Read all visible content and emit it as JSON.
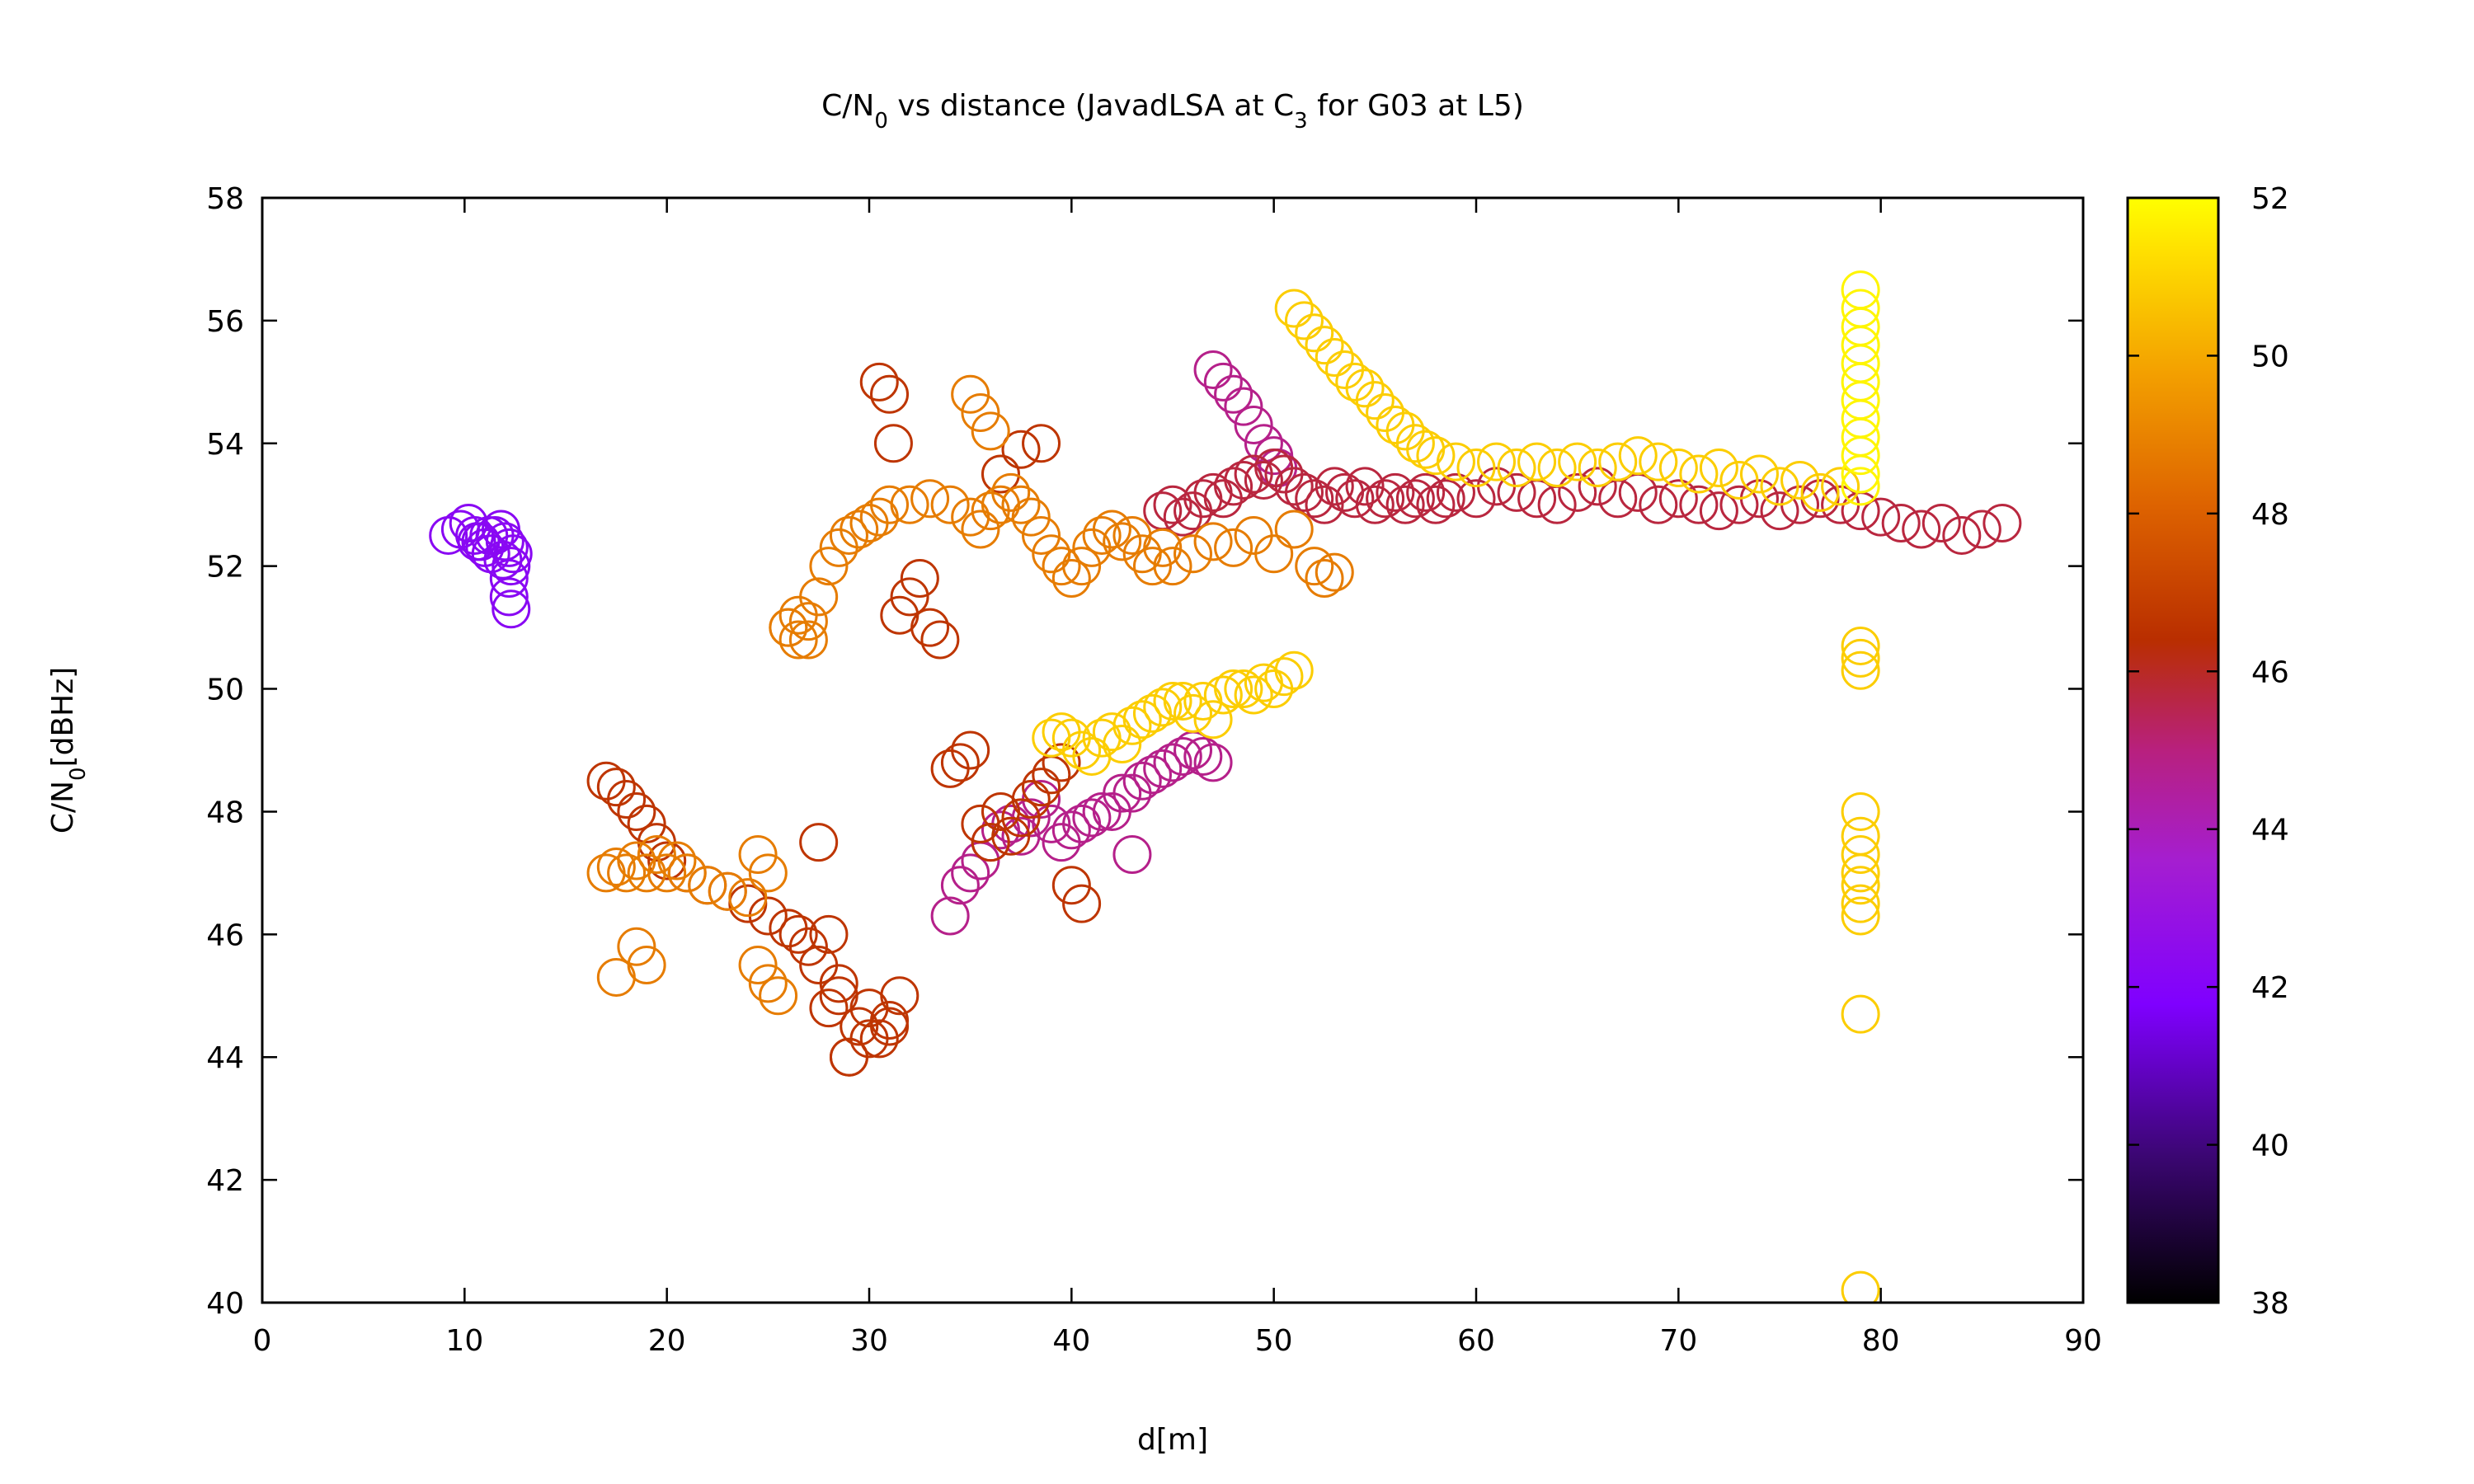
{
  "chart_data": {
    "type": "scatter",
    "title": {
      "prefix": "C/N",
      "sub1": "0",
      "middle": " vs distance (JavadLSA at C",
      "sub2": "3",
      "suffix": " for G03 at L5)"
    },
    "xlabel": "d[m]",
    "ylabel": {
      "prefix": "C/N",
      "sub": "0",
      "suffix": "[dBHz]"
    },
    "xlim": [
      0,
      90
    ],
    "ylim": [
      40,
      58
    ],
    "xticks": [
      "0",
      "10",
      "20",
      "30",
      "40",
      "50",
      "60",
      "70",
      "80",
      "90"
    ],
    "yticks": [
      "40",
      "42",
      "44",
      "46",
      "48",
      "50",
      "52",
      "54",
      "56",
      "58"
    ],
    "colorbar": {
      "range": [
        38,
        52
      ],
      "ticks": [
        "38",
        "40",
        "42",
        "44",
        "46",
        "48",
        "50",
        "52"
      ],
      "palette": [
        "#000000",
        "#3a0670",
        "#7f00ff",
        "#a51ed0",
        "#b8207e",
        "#b92e00",
        "#dd6200",
        "#f39f00",
        "#ffdf00",
        "#ffff00"
      ]
    },
    "marker": "open-circle",
    "series": [
      {
        "color_value": 41.5,
        "x": [
          9.2,
          9.8,
          10.2,
          10.5,
          10.8,
          11.0,
          11.2,
          11.5,
          11.8,
          12.0,
          12.2,
          12.4,
          12.3,
          12.2,
          12.2,
          12.3,
          10.6,
          11.3,
          11.9
        ],
        "y": [
          52.5,
          52.6,
          52.7,
          52.5,
          52.4,
          52.3,
          52.5,
          52.5,
          52.6,
          52.4,
          52.3,
          52.2,
          52.0,
          51.8,
          51.5,
          51.3,
          52.4,
          52.2,
          52.1
        ]
      },
      {
        "color_value": 44.0,
        "x": [
          47.0,
          47.5,
          48.0,
          48.5,
          49.0,
          49.5,
          50.0,
          50.2,
          34.0,
          34.5,
          35.0,
          35.5,
          36.0,
          36.5,
          37.0,
          37.5,
          38.0,
          38.5,
          39.0,
          39.5,
          40.0,
          40.5,
          41.0,
          41.5,
          42.0,
          42.5,
          43.0,
          43.5,
          44.0,
          44.5,
          45.0,
          45.5,
          46.0,
          46.5,
          47.0,
          43.0
        ],
        "y": [
          55.2,
          55.0,
          54.8,
          54.6,
          54.3,
          54.0,
          53.8,
          53.6,
          46.3,
          46.8,
          47.0,
          47.2,
          47.5,
          47.7,
          47.8,
          47.6,
          47.9,
          48.2,
          47.8,
          47.5,
          47.7,
          47.8,
          47.9,
          48.0,
          48.0,
          48.3,
          48.3,
          48.5,
          48.6,
          48.7,
          48.8,
          48.9,
          49.0,
          48.9,
          48.8,
          47.3
        ]
      },
      {
        "color_value": 45.0,
        "x": [
          44.5,
          45.0,
          45.5,
          46.0,
          46.5,
          47.0,
          47.5,
          48.0,
          48.5,
          49.0,
          49.5,
          50.0,
          50.5,
          51.0,
          51.5,
          52.0,
          52.5,
          53.0,
          53.5,
          54.0,
          54.5,
          55.0,
          55.5,
          56.0,
          56.5,
          57.0,
          57.5,
          58.0,
          58.5,
          59.0,
          60.0,
          61.0,
          62.0,
          63.0,
          64.0,
          65.0,
          66.0,
          67.0,
          68.0,
          69.0,
          70.0,
          71.0,
          72.0,
          73.0,
          74.0,
          75.0,
          76.0,
          77.0,
          78.0,
          79.0,
          80.0,
          81.0,
          82.0,
          83.0,
          84.0,
          85.0,
          86.0
        ],
        "y": [
          52.9,
          53.0,
          52.8,
          52.9,
          53.1,
          53.2,
          53.1,
          53.3,
          53.4,
          53.5,
          53.4,
          53.6,
          53.5,
          53.3,
          53.2,
          53.1,
          53.0,
          53.3,
          53.2,
          53.1,
          53.3,
          53.0,
          53.1,
          53.2,
          53.0,
          53.1,
          53.2,
          53.0,
          53.1,
          53.2,
          53.1,
          53.3,
          53.2,
          53.1,
          53.0,
          53.2,
          53.3,
          53.1,
          53.2,
          53.0,
          53.1,
          53.0,
          52.9,
          53.0,
          53.1,
          52.9,
          53.0,
          53.1,
          53.0,
          52.9,
          52.8,
          52.7,
          52.6,
          52.7,
          52.5,
          52.6,
          52.7
        ]
      },
      {
        "color_value": 46.0,
        "x": [
          17.0,
          17.5,
          18.0,
          18.5,
          19.0,
          19.5,
          20.0,
          21.0,
          22.0,
          23.0,
          24.0,
          25.0,
          26.0,
          26.5,
          27.0,
          27.5,
          28.0,
          28.5,
          29.0,
          29.5,
          30.0,
          30.5,
          31.0,
          31.5,
          30.5,
          31.0,
          31.2,
          31.5,
          32.0,
          32.5,
          33.0,
          33.5,
          34.0,
          34.5,
          35.0,
          35.5,
          36.0,
          36.5,
          37.0,
          37.5,
          38.0,
          38.5,
          39.0,
          39.5,
          40.0,
          40.5,
          28.0,
          28.5,
          29.0,
          30.0,
          31.0,
          27.5,
          36.5,
          37.5,
          38.5
        ],
        "y": [
          48.5,
          48.4,
          48.2,
          48.0,
          47.8,
          47.5,
          47.2,
          47.0,
          46.8,
          46.7,
          46.5,
          46.3,
          46.1,
          46.0,
          45.8,
          45.5,
          46.0,
          45.2,
          44.0,
          44.5,
          44.8,
          44.3,
          44.5,
          45.0,
          55.0,
          54.8,
          54.0,
          51.2,
          51.5,
          51.8,
          51.0,
          50.8,
          48.7,
          48.8,
          49.0,
          47.8,
          47.5,
          48.0,
          47.6,
          47.9,
          48.2,
          48.4,
          48.6,
          48.8,
          46.8,
          46.5,
          44.8,
          45.0,
          44.0,
          44.3,
          44.6,
          47.5,
          53.5,
          53.9,
          54.0
        ]
      },
      {
        "color_value": 48.0,
        "x": [
          17.0,
          17.5,
          18.0,
          18.5,
          19.0,
          19.5,
          20.0,
          20.5,
          21.0,
          22.0,
          23.0,
          24.0,
          24.5,
          25.0,
          25.5,
          26.0,
          26.5,
          27.0,
          27.5,
          28.0,
          28.5,
          29.0,
          29.5,
          30.0,
          30.5,
          31.0,
          32.0,
          33.0,
          34.0,
          35.0,
          35.5,
          36.0,
          36.5,
          37.0,
          37.5,
          38.0,
          38.5,
          39.0,
          39.5,
          40.0,
          40.5,
          41.0,
          41.5,
          42.0,
          42.5,
          43.0,
          43.5,
          44.0,
          44.5,
          45.0,
          46.0,
          47.0,
          48.0,
          49.0,
          50.0,
          51.0,
          52.0,
          52.5,
          53.0,
          26.0,
          26.5,
          27.0,
          17.5,
          18.5,
          19.0,
          24.5,
          25.0,
          35.0,
          35.5,
          36.0
        ],
        "y": [
          47.0,
          47.1,
          47.0,
          47.2,
          47.0,
          47.3,
          47.0,
          47.2,
          47.0,
          46.8,
          46.7,
          46.6,
          45.5,
          45.2,
          45.0,
          51.0,
          51.2,
          50.8,
          51.5,
          52.0,
          52.3,
          52.5,
          52.6,
          52.7,
          52.8,
          53.0,
          53.0,
          53.1,
          53.0,
          52.8,
          52.6,
          52.9,
          53.0,
          53.2,
          53.0,
          52.8,
          52.5,
          52.2,
          52.0,
          51.8,
          52.0,
          52.3,
          52.5,
          52.6,
          52.4,
          52.5,
          52.2,
          52.0,
          52.3,
          52.0,
          52.2,
          52.4,
          52.3,
          52.5,
          52.2,
          52.6,
          52.0,
          51.8,
          51.9,
          51.0,
          50.8,
          51.1,
          45.3,
          45.8,
          45.5,
          47.3,
          47.0,
          54.8,
          54.5,
          54.2
        ]
      },
      {
        "color_value": 50.0,
        "x": [
          51.0,
          51.5,
          52.0,
          52.5,
          53.0,
          53.5,
          54.0,
          54.5,
          55.0,
          55.5,
          56.0,
          56.5,
          57.0,
          57.5,
          58.0,
          59.0,
          60.0,
          61.0,
          62.0,
          63.0,
          64.0,
          65.0,
          66.0,
          67.0,
          68.0,
          69.0,
          70.0,
          71.0,
          72.0,
          73.0,
          74.0,
          75.0,
          76.0,
          77.0,
          78.0,
          39.0,
          39.5,
          40.0,
          40.5,
          41.0,
          41.5,
          42.0,
          42.5,
          43.0,
          43.5,
          44.0,
          44.5,
          45.0,
          45.5,
          46.0,
          46.5,
          47.0,
          47.5,
          48.0,
          48.5,
          49.0,
          49.5,
          50.0,
          50.5,
          51.0,
          79.0,
          79.0,
          79.0,
          79.0,
          79.0,
          79.0,
          79.0,
          79.0,
          79.0,
          79.0,
          79.0,
          79.0
        ],
        "y": [
          56.2,
          56.0,
          55.8,
          55.6,
          55.4,
          55.2,
          55.0,
          54.9,
          54.7,
          54.5,
          54.3,
          54.2,
          54.0,
          53.9,
          53.8,
          53.7,
          53.6,
          53.7,
          53.6,
          53.7,
          53.6,
          53.7,
          53.6,
          53.7,
          53.8,
          53.7,
          53.6,
          53.5,
          53.6,
          53.4,
          53.5,
          53.3,
          53.4,
          53.2,
          53.3,
          49.2,
          49.3,
          49.2,
          49.0,
          48.9,
          49.2,
          49.3,
          49.1,
          49.4,
          49.5,
          49.6,
          49.7,
          49.8,
          49.8,
          49.6,
          49.8,
          49.5,
          49.9,
          50.0,
          50.0,
          49.9,
          50.1,
          50.0,
          50.2,
          50.3,
          50.7,
          50.5,
          50.3,
          48.0,
          47.6,
          47.3,
          47.0,
          46.8,
          46.5,
          46.3,
          44.7,
          40.2
        ]
      },
      {
        "color_value": 51.5,
        "x": [
          79.0,
          79.0,
          79.0,
          79.0,
          79.0,
          79.0,
          79.0,
          79.0,
          79.0,
          79.0,
          79.0,
          79.0
        ],
        "y": [
          56.5,
          56.2,
          55.9,
          55.6,
          55.3,
          55.0,
          54.7,
          54.4,
          54.1,
          53.8,
          53.5,
          53.3
        ]
      }
    ]
  }
}
